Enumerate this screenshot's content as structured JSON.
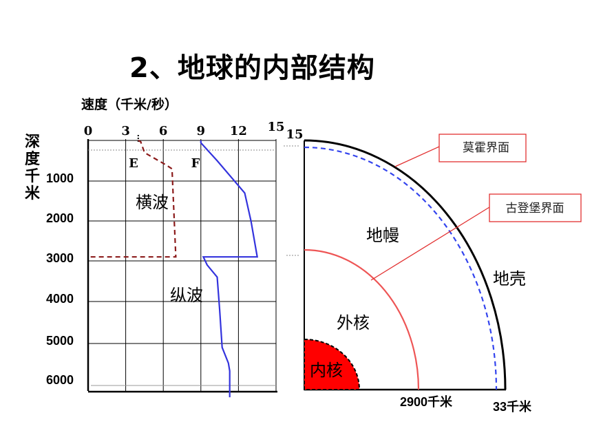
{
  "title": "2、地球的内部结构",
  "speed_axis_label": "速度（千米/秒）",
  "depth_axis_label": [
    "深",
    "度",
    "千",
    "米"
  ],
  "speed_ticks": [
    "0",
    "3",
    "6",
    "9",
    "12",
    "15"
  ],
  "speed_tick_extra": "15",
  "depth_ticks": [
    "1000",
    "2000",
    "3000",
    "4000",
    "5000",
    "6000"
  ],
  "wave_markers": {
    "e": "E",
    "f": "F"
  },
  "wave_labels": {
    "transverse": "横波",
    "longitudinal": "纵波"
  },
  "layers": {
    "crust": "地壳",
    "mantle": "地幔",
    "outer_core": "外核",
    "inner_core": "内核"
  },
  "boundaries": {
    "moho": "莫霍界面",
    "gutenberg": "古登堡界面"
  },
  "distances": {
    "d2900": "2900千米",
    "d33": "33千米"
  },
  "colors": {
    "transverse": "#8b1a1a",
    "longitudinal": "#3333dd",
    "inner_core": "#ff0000",
    "outer_core_line": "#ee5555",
    "moho_line": "#3344ee",
    "callout": "#e23030"
  },
  "chart_data": {
    "type": "line",
    "xlabel": "速度（千米/秒）",
    "ylabel": "深度千米",
    "xlim": [
      0,
      15
    ],
    "ylim": [
      0,
      6371
    ],
    "series": [
      {
        "name": "横波",
        "points": [
          [
            4.0,
            0
          ],
          [
            4.2,
            33
          ],
          [
            4.5,
            300
          ],
          [
            6.2,
            600
          ],
          [
            6.7,
            700
          ],
          [
            7.0,
            2900
          ],
          [
            0.0,
            2900
          ]
        ]
      },
      {
        "name": "纵波",
        "points": [
          [
            9.0,
            0
          ],
          [
            9.0,
            60
          ],
          [
            10.3,
            500
          ],
          [
            12.5,
            1300
          ],
          [
            13.0,
            2000
          ],
          [
            13.5,
            2900
          ],
          [
            9.2,
            2900
          ],
          [
            9.5,
            3100
          ],
          [
            10.3,
            3400
          ],
          [
            10.5,
            4200
          ],
          [
            10.7,
            5100
          ],
          [
            11.2,
            5500
          ],
          [
            11.3,
            5700
          ],
          [
            11.3,
            6371
          ]
        ]
      }
    ],
    "grid": true
  }
}
